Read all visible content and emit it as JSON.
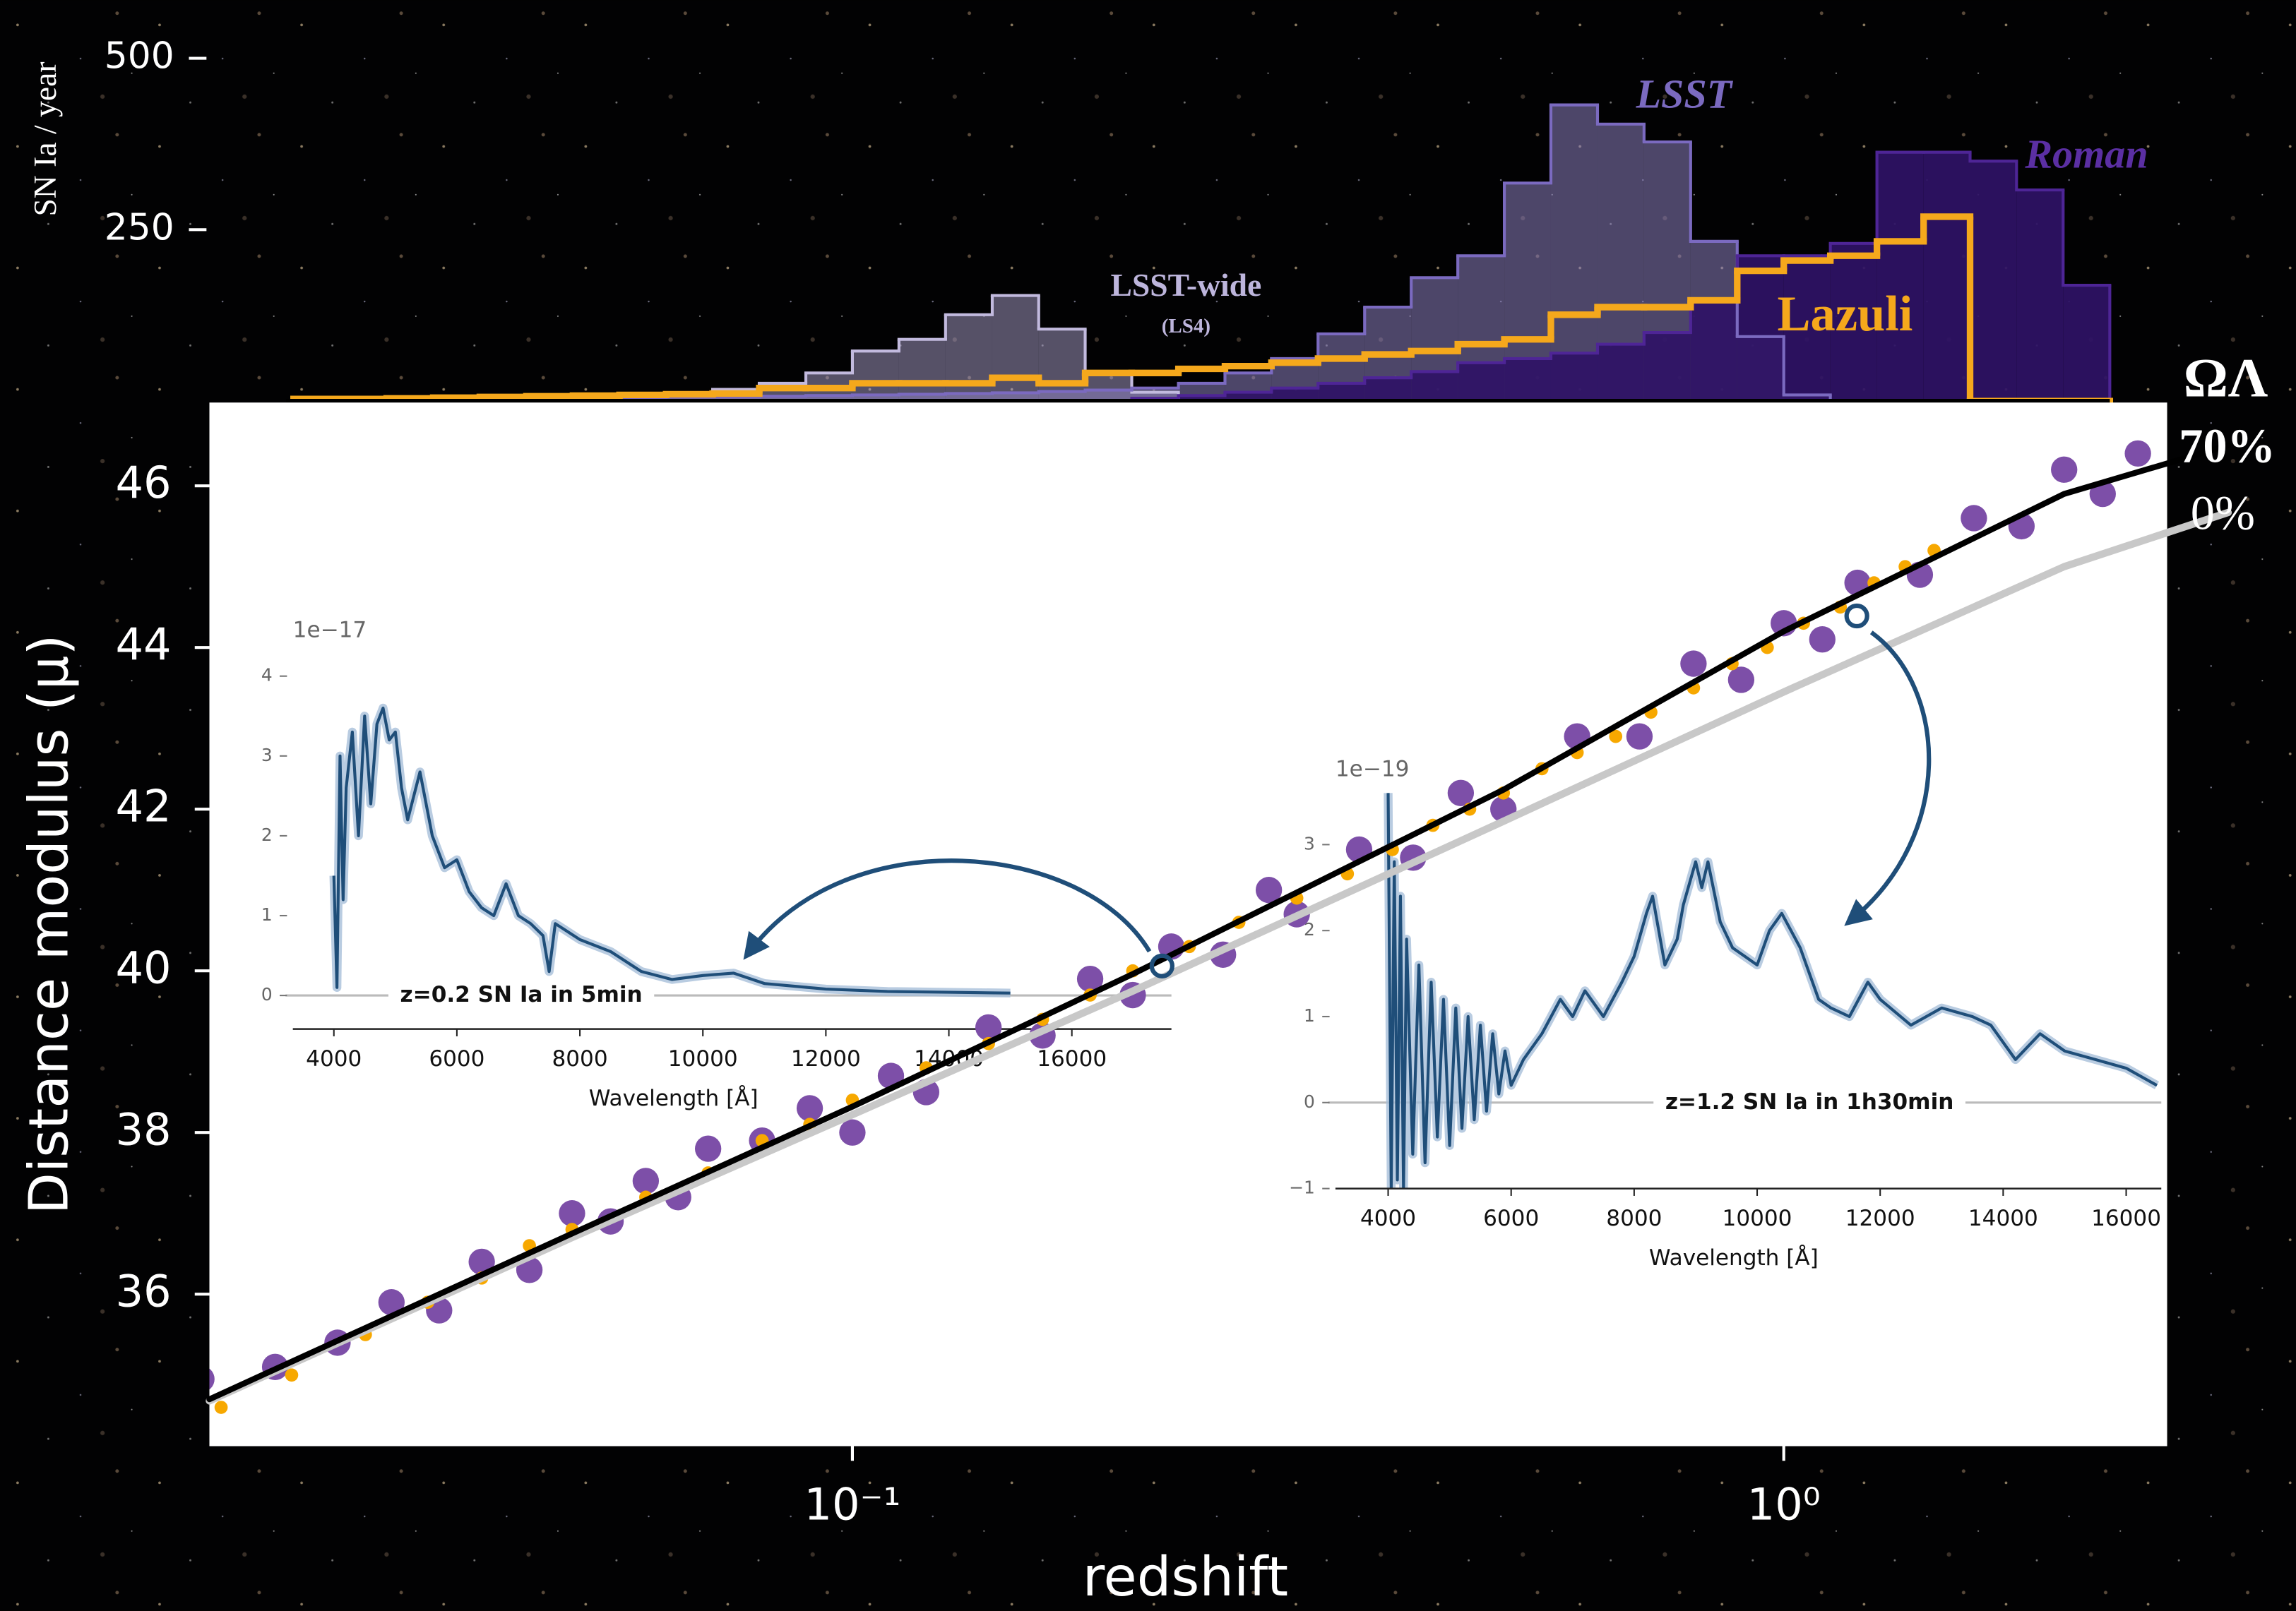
{
  "chart_data": [
    {
      "type": "histogram",
      "y_label": "SN Ia / year",
      "xscale": "log",
      "xlim": [
        0.0204,
        2.58
      ],
      "ylim": [
        0,
        585
      ],
      "yticks": [
        250,
        500
      ],
      "bins": [
        0.02512,
        0.02818,
        0.03162,
        0.03548,
        0.03981,
        0.04467,
        0.05012,
        0.05623,
        0.0631,
        0.07079,
        0.07943,
        0.08913,
        0.1,
        0.1122,
        0.1259,
        0.1413,
        0.1585,
        0.1778,
        0.1995,
        0.2239,
        0.2512,
        0.2818,
        0.3162,
        0.3548,
        0.3981,
        0.4467,
        0.5012,
        0.5623,
        0.631,
        0.7079,
        0.7943,
        0.8913,
        1,
        1.122,
        1.259,
        1.413,
        1.585,
        1.778,
        1.995,
        2.239
      ],
      "series": [
        {
          "name": "LSST-wide",
          "note": "(LS4)",
          "color": "#c2bade",
          "filled": true,
          "fill": "#a9a0cc",
          "fill_opacity": 0.5,
          "values": [
            4,
            4,
            4,
            4,
            4,
            8,
            8,
            8,
            8,
            17,
            26,
            41,
            73,
            90,
            126,
            154,
            105,
            41,
            13,
            0,
            0,
            0,
            0,
            0,
            0,
            0,
            0,
            0,
            0,
            0,
            0,
            0,
            0,
            0,
            0,
            0,
            0,
            0,
            0
          ]
        },
        {
          "name": "LSST",
          "color": "#7b6ac0",
          "filled": true,
          "fill": "#8d80bd",
          "fill_opacity": 0.55,
          "values": [
            2,
            2,
            3,
            3,
            4,
            4,
            5,
            5,
            6,
            6,
            7,
            8,
            9,
            10,
            11,
            12,
            14,
            16,
            19,
            26,
            41,
            62,
            98,
            137,
            180,
            212,
            318,
            432,
            404,
            378,
            233,
            94,
            9,
            0,
            0,
            0,
            0,
            0,
            0
          ]
        },
        {
          "name": "Roman",
          "color": "#4e2596",
          "filled": true,
          "fill": "#2f1266",
          "fill_opacity": 0.92,
          "values": [
            0,
            0,
            0,
            0,
            0,
            0,
            0,
            0,
            0,
            0,
            0,
            0,
            0,
            0,
            0,
            0,
            0,
            0,
            4,
            8,
            13,
            19,
            26,
            34,
            43,
            56,
            62,
            70,
            83,
            100,
            147,
            212,
            212,
            230,
            363,
            363,
            350,
            308,
            169
          ]
        },
        {
          "name": "Lazuli",
          "color": "#f5a81c",
          "filled": false,
          "values": [
            3,
            3,
            4,
            5,
            6,
            7,
            8,
            9,
            10,
            11,
            19,
            19,
            26,
            26,
            26,
            34,
            26,
            41,
            41,
            47,
            51,
            56,
            62,
            68,
            73,
            83,
            90,
            126,
            137,
            137,
            147,
            190,
            205,
            212,
            233,
            269,
            0,
            0,
            0
          ]
        }
      ]
    },
    {
      "type": "scatter",
      "x_label": "redshift",
      "y_label": "Distance modulus (μ)",
      "xscale": "log",
      "xlim": [
        0.0204,
        2.58
      ],
      "ylim": [
        34.12,
        47.03
      ],
      "xticks": [
        {
          "value": 0.1,
          "label": "10⁻¹"
        },
        {
          "value": 1,
          "label": "10⁰"
        }
      ],
      "yticks": [
        36,
        38,
        40,
        42,
        44,
        46
      ],
      "series": [
        {
          "color": "#7d4fa8",
          "x": [
            0.02,
            0.024,
            0.028,
            0.032,
            0.036,
            0.04,
            0.045,
            0.05,
            0.055,
            0.06,
            0.065,
            0.07,
            0.08,
            0.09,
            0.1,
            0.11,
            0.12,
            0.14,
            0.16,
            0.18,
            0.2,
            0.22,
            0.25,
            0.28,
            0.3,
            0.35,
            0.4,
            0.45,
            0.5,
            0.6,
            0.7,
            0.8,
            0.9,
            1.0,
            1.1,
            1.2,
            1.4,
            1.6,
            1.8,
            2.0,
            2.2,
            2.4
          ],
          "values": [
            34.95,
            35.1,
            35.4,
            35.9,
            35.8,
            36.4,
            36.3,
            37.0,
            36.9,
            37.4,
            37.2,
            37.8,
            37.9,
            38.3,
            38.0,
            38.7,
            38.5,
            39.3,
            39.2,
            39.9,
            39.7,
            40.3,
            40.2,
            41.0,
            40.7,
            41.5,
            41.4,
            42.2,
            42.0,
            42.9,
            42.9,
            43.8,
            43.6,
            44.3,
            44.1,
            44.8,
            44.9,
            45.6,
            45.5,
            46.2,
            45.9,
            46.4
          ]
        },
        {
          "color": "#f7a800",
          "x": [
            0.021,
            0.025,
            0.03,
            0.035,
            0.04,
            0.045,
            0.05,
            0.06,
            0.07,
            0.08,
            0.09,
            0.1,
            0.12,
            0.14,
            0.16,
            0.18,
            0.2,
            0.23,
            0.26,
            0.3,
            0.34,
            0.38,
            0.42,
            0.46,
            0.5,
            0.55,
            0.6,
            0.66,
            0.72,
            0.8,
            0.88,
            0.96,
            1.05,
            1.15,
            1.25,
            1.35,
            1.45
          ],
          "values": [
            34.6,
            35.0,
            35.5,
            35.9,
            36.2,
            36.6,
            36.8,
            37.2,
            37.5,
            37.9,
            38.1,
            38.4,
            38.8,
            39.1,
            39.4,
            39.7,
            40.0,
            40.3,
            40.6,
            40.9,
            41.2,
            41.5,
            41.8,
            42.0,
            42.2,
            42.5,
            42.7,
            42.9,
            43.2,
            43.5,
            43.8,
            44.0,
            44.3,
            44.5,
            44.8,
            45.0,
            45.2
          ]
        }
      ],
      "lines_title": "ΩΛ",
      "lines": [
        {
          "label": "0%",
          "color": "#c8c8c8",
          "x": [
            0.0204,
            0.05,
            0.1,
            0.2,
            0.5,
            1,
            2,
            3
          ],
          "values": [
            34.68,
            36.7,
            38.22,
            39.75,
            41.85,
            43.45,
            45.0,
            45.67
          ]
        },
        {
          "label": "70%",
          "color": "#000000",
          "x": [
            0.0204,
            0.05,
            0.1,
            0.2,
            0.5,
            1,
            2,
            3
          ],
          "values": [
            34.7,
            36.75,
            38.32,
            39.96,
            42.24,
            44.2,
            45.9,
            46.5
          ]
        }
      ],
      "highlights": {
        "color": "#1f4e79",
        "x": [
          0.215,
          1.198
        ],
        "values": [
          40.06,
          44.39
        ]
      }
    },
    {
      "type": "line",
      "x_label": "Wavelength [Å]",
      "multiplier": "1e−17",
      "annotation": "z=0.2 SN Ia in 5min",
      "xlim": [
        3333,
        17619
      ],
      "ylim": [
        -0.42,
        4.31
      ],
      "xticks": [
        4000,
        6000,
        8000,
        10000,
        12000,
        14000,
        16000
      ],
      "yticks": [
        0,
        1,
        2,
        3,
        4
      ],
      "series": [
        {
          "color": "#1f4e79",
          "x": [
            4000,
            4050,
            4100,
            4150,
            4200,
            4300,
            4400,
            4500,
            4600,
            4700,
            4800,
            4900,
            5000,
            5100,
            5200,
            5300,
            5400,
            5500,
            5600,
            5800,
            6000,
            6200,
            6400,
            6600,
            6800,
            7000,
            7200,
            7400,
            7500,
            7600,
            7800,
            8000,
            8500,
            9000,
            9500,
            10000,
            10500,
            11000,
            12000,
            13000,
            14000,
            15000
          ],
          "values": [
            1.5,
            0.1,
            3.0,
            1.2,
            2.6,
            3.3,
            2.0,
            3.5,
            2.4,
            3.4,
            3.6,
            3.2,
            3.3,
            2.6,
            2.2,
            2.5,
            2.8,
            2.4,
            2.0,
            1.6,
            1.7,
            1.3,
            1.1,
            1.0,
            1.4,
            1.0,
            0.9,
            0.75,
            0.3,
            0.9,
            0.8,
            0.7,
            0.55,
            0.3,
            0.2,
            0.25,
            0.28,
            0.15,
            0.08,
            0.05,
            0.04,
            0.03
          ]
        }
      ]
    },
    {
      "type": "line",
      "x_label": "Wavelength [Å]",
      "multiplier": "1e−19",
      "annotation": "z=1.2 SN Ia in 1h30min",
      "xlim": [
        3143,
        16571
      ],
      "ylim": [
        -1,
        3.63
      ],
      "xticks": [
        4000,
        6000,
        8000,
        10000,
        12000,
        14000,
        16000
      ],
      "yticks": [
        {
          "value": -1,
          "label": "−1"
        },
        0,
        1,
        2,
        3
      ],
      "series": [
        {
          "color": "#1f4e79",
          "x": [
            4000,
            4050,
            4100,
            4150,
            4200,
            4250,
            4300,
            4400,
            4500,
            4600,
            4700,
            4800,
            4900,
            5000,
            5100,
            5200,
            5300,
            5400,
            5500,
            5600,
            5700,
            5800,
            5900,
            6000,
            6200,
            6500,
            6800,
            7000,
            7200,
            7500,
            7800,
            8000,
            8200,
            8300,
            8500,
            8700,
            8800,
            9000,
            9100,
            9200,
            9400,
            9600,
            9800,
            10000,
            10200,
            10400,
            10700,
            11000,
            11200,
            11500,
            11800,
            12000,
            12500,
            13000,
            13500,
            13800,
            14200,
            14600,
            15000,
            15500,
            16000,
            16500
          ],
          "values": [
            3.6,
            -1.0,
            2.8,
            -0.9,
            2.4,
            -1.0,
            1.9,
            -0.6,
            1.6,
            -0.7,
            1.4,
            -0.4,
            1.2,
            -0.5,
            1.1,
            -0.3,
            1.0,
            -0.2,
            0.9,
            -0.1,
            0.8,
            0.1,
            0.6,
            0.2,
            0.5,
            0.8,
            1.2,
            1.0,
            1.3,
            1.0,
            1.4,
            1.7,
            2.2,
            2.4,
            1.6,
            1.9,
            2.3,
            2.8,
            2.5,
            2.8,
            2.1,
            1.8,
            1.7,
            1.6,
            2.0,
            2.2,
            1.8,
            1.2,
            1.1,
            1.0,
            1.4,
            1.2,
            0.9,
            1.1,
            1.0,
            0.9,
            0.5,
            0.8,
            0.6,
            0.5,
            0.4,
            0.2
          ]
        }
      ]
    }
  ]
}
